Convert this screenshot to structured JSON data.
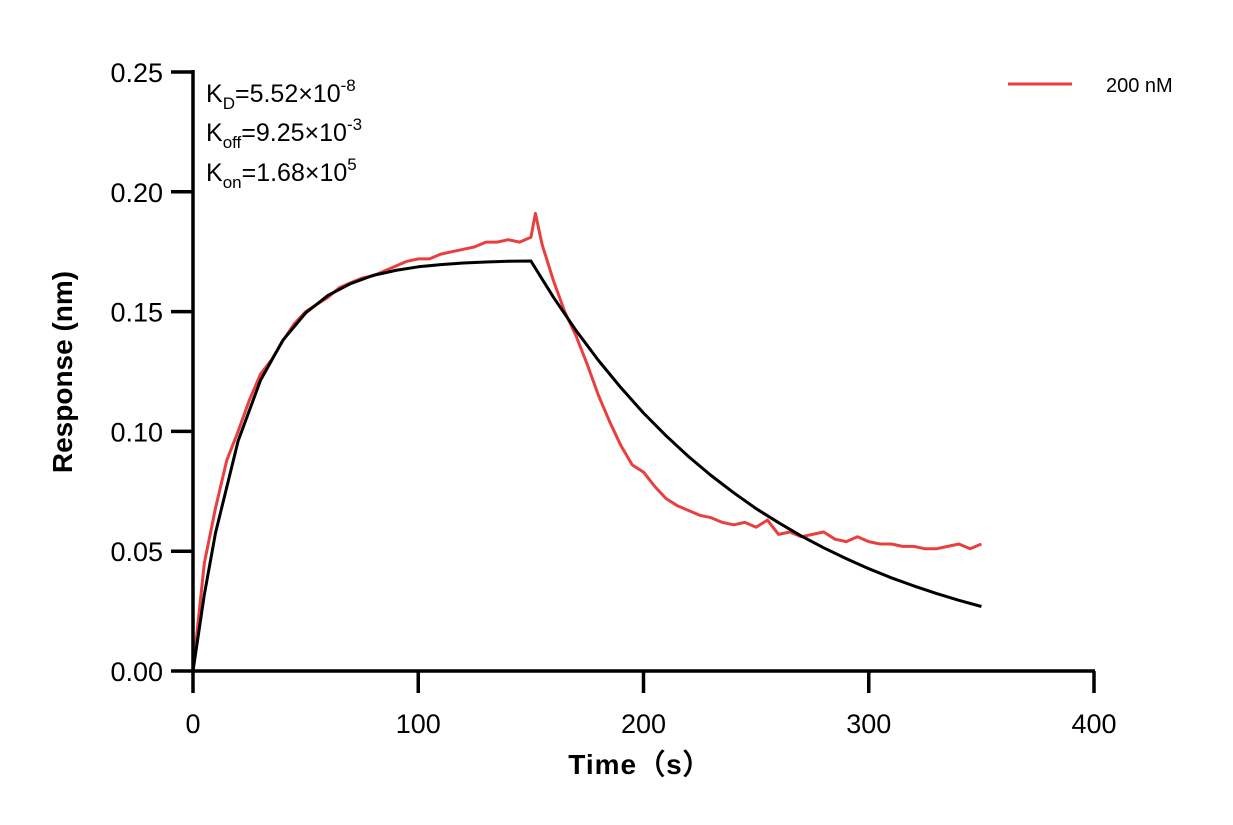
{
  "chart_data": {
    "type": "line",
    "xlabel": "Time（s）",
    "ylabel": "Response (nm)",
    "xlim": [
      0,
      400
    ],
    "ylim": [
      0,
      0.25
    ],
    "xticks": [
      "0",
      "100",
      "200",
      "300",
      "400"
    ],
    "yticks": [
      "0.00",
      "0.05",
      "0.10",
      "0.15",
      "0.20",
      "0.25"
    ],
    "grid": false,
    "legend": {
      "position": "top-right",
      "entries": [
        "200 nM"
      ]
    },
    "annotations": [
      {
        "main": "K",
        "sub": "D",
        "text": "=5.52×10",
        "sup": "-8"
      },
      {
        "main": "K",
        "sub": "off",
        "text": "=9.25×10",
        "sup": "-3"
      },
      {
        "main": "K",
        "sub": "on",
        "text": "=1.68×10",
        "sup": "5"
      }
    ],
    "series": [
      {
        "name": "200 nM",
        "color": "#e8403f",
        "x": [
          0,
          5,
          10,
          15,
          20,
          25,
          30,
          35,
          40,
          45,
          50,
          55,
          60,
          65,
          70,
          75,
          80,
          85,
          90,
          95,
          100,
          105,
          110,
          115,
          120,
          125,
          130,
          135,
          140,
          145,
          150,
          152,
          155,
          160,
          165,
          170,
          175,
          180,
          185,
          190,
          195,
          200,
          205,
          210,
          215,
          220,
          225,
          230,
          235,
          240,
          245,
          250,
          255,
          260,
          265,
          270,
          275,
          280,
          285,
          290,
          295,
          300,
          305,
          310,
          315,
          320,
          325,
          330,
          335,
          340,
          345,
          350
        ],
        "y": [
          0,
          0.045,
          0.068,
          0.088,
          0.1,
          0.113,
          0.124,
          0.13,
          0.138,
          0.145,
          0.15,
          0.153,
          0.156,
          0.16,
          0.162,
          0.164,
          0.165,
          0.167,
          0.169,
          0.171,
          0.172,
          0.172,
          0.174,
          0.175,
          0.176,
          0.177,
          0.179,
          0.179,
          0.18,
          0.179,
          0.181,
          0.191,
          0.178,
          0.163,
          0.15,
          0.14,
          0.128,
          0.115,
          0.104,
          0.094,
          0.086,
          0.083,
          0.077,
          0.072,
          0.069,
          0.067,
          0.065,
          0.064,
          0.062,
          0.061,
          0.062,
          0.06,
          0.063,
          0.057,
          0.058,
          0.056,
          0.057,
          0.058,
          0.055,
          0.054,
          0.056,
          0.054,
          0.053,
          0.053,
          0.052,
          0.052,
          0.051,
          0.051,
          0.052,
          0.053,
          0.051,
          0.053
        ]
      },
      {
        "color": "#000000",
        "x": [
          0,
          5,
          10,
          20,
          30,
          40,
          50,
          60,
          70,
          80,
          90,
          100,
          110,
          120,
          130,
          140,
          150,
          160,
          170,
          180,
          190,
          200,
          210,
          220,
          230,
          240,
          250,
          260,
          270,
          280,
          290,
          300,
          310,
          320,
          330,
          340,
          350
        ],
        "y": [
          0,
          0.0318,
          0.0576,
          0.096,
          0.1214,
          0.1382,
          0.1494,
          0.1568,
          0.1617,
          0.1651,
          0.1672,
          0.1687,
          0.1696,
          0.1703,
          0.1707,
          0.171,
          0.1711,
          0.156,
          0.1422,
          0.1296,
          0.1182,
          0.1077,
          0.0982,
          0.0895,
          0.0816,
          0.0744,
          0.0678,
          0.0619,
          0.0564,
          0.0514,
          0.0469,
          0.0427,
          0.0389,
          0.0355,
          0.0324,
          0.0295,
          0.0269
        ]
      }
    ]
  }
}
